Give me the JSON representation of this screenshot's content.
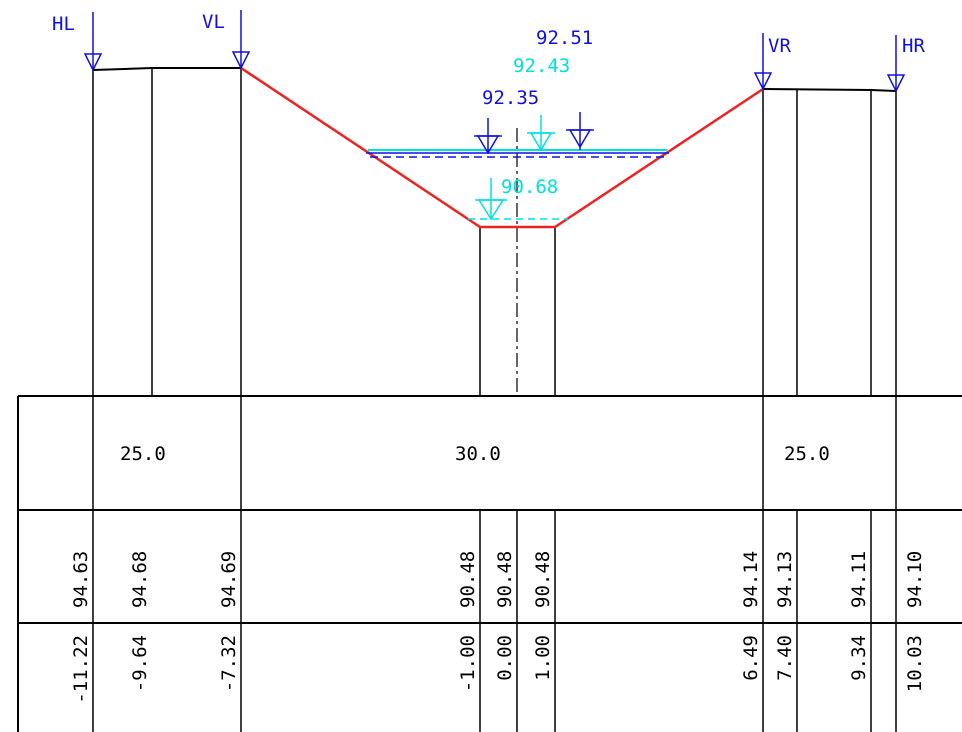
{
  "markers": {
    "hl": "HL",
    "vl": "VL",
    "vr": "VR",
    "hr": "HR"
  },
  "water_levels": {
    "w1": "92.51",
    "w2": "92.43",
    "w3": "92.35",
    "w4": "90.68"
  },
  "widths": {
    "left": "25.0",
    "center": "30.0",
    "right": "25.0"
  },
  "elevations": [
    "94.63",
    "94.68",
    "94.69",
    "90.48",
    "90.48",
    "90.48",
    "94.14",
    "94.13",
    "94.11",
    "94.10"
  ],
  "offsets": [
    "-11.22",
    "-9.64",
    "-7.32",
    "-1.00",
    "0.00",
    "1.00",
    "6.49",
    "7.40",
    "9.34",
    "10.03"
  ],
  "colors": {
    "profile": "#ee2222",
    "marker": "#1010e0",
    "water_secondary": "#00e0e0",
    "lines": "#000000"
  }
}
